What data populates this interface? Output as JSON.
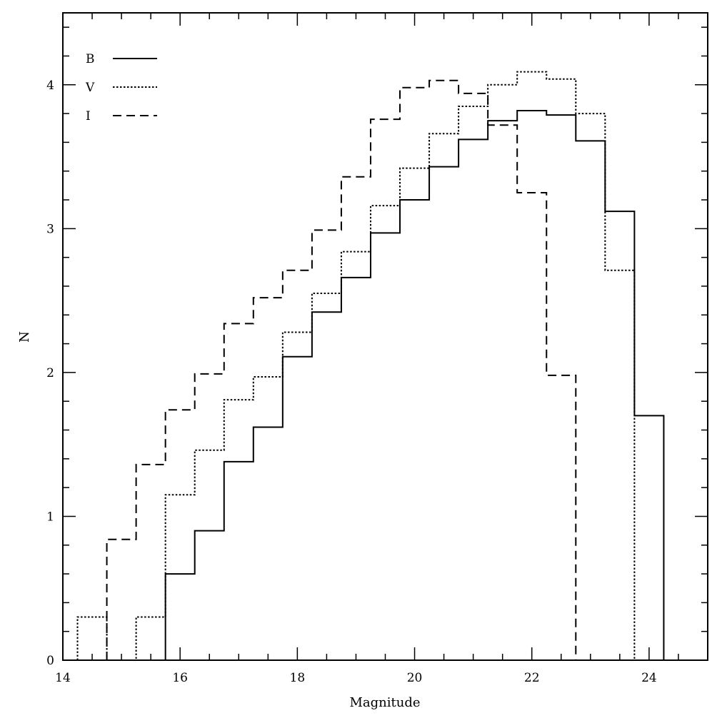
{
  "chart_data": {
    "type": "line",
    "subtype": "step-histogram",
    "title": "",
    "xlabel": "Magnitude",
    "ylabel": "N",
    "xlim": [
      14,
      25
    ],
    "ylim": [
      0,
      4.5
    ],
    "x_ticks": [
      14,
      16,
      18,
      20,
      22,
      24
    ],
    "y_ticks": [
      0,
      1,
      2,
      3,
      4
    ],
    "grid": false,
    "legend_position": "top-left",
    "bin_width": 0.5,
    "series": [
      {
        "name": "B",
        "style": "solid",
        "bin_left_edges": [
          15.75,
          16.25,
          16.75,
          17.25,
          17.75,
          18.25,
          18.75,
          19.25,
          19.75,
          20.25,
          20.75,
          21.25,
          21.75,
          22.25,
          22.75,
          23.25,
          23.75
        ],
        "values": [
          0.6,
          0.9,
          1.38,
          1.62,
          2.11,
          2.42,
          2.66,
          2.97,
          3.2,
          3.43,
          3.62,
          3.75,
          3.82,
          3.79,
          3.61,
          3.12,
          1.7
        ]
      },
      {
        "name": "V",
        "style": "dotted",
        "bin_left_edges": [
          14.25,
          14.75,
          15.25,
          15.75,
          16.25,
          16.75,
          17.25,
          17.75,
          18.25,
          18.75,
          19.25,
          19.75,
          20.25,
          20.75,
          21.25,
          21.75,
          22.25,
          22.75,
          23.25
        ],
        "values": [
          0.3,
          0,
          0.3,
          1.15,
          1.46,
          1.81,
          1.97,
          2.28,
          2.55,
          2.84,
          3.16,
          3.42,
          3.66,
          3.85,
          4.0,
          4.09,
          4.04,
          3.8,
          2.71
        ]
      },
      {
        "name": "I",
        "style": "dashed",
        "bin_left_edges": [
          14.75,
          15.25,
          15.75,
          16.25,
          16.75,
          17.25,
          17.75,
          18.25,
          18.75,
          19.25,
          19.75,
          20.25,
          20.75,
          21.25,
          21.75,
          22.25
        ],
        "values": [
          0.84,
          1.36,
          1.74,
          1.99,
          2.34,
          2.52,
          2.71,
          2.99,
          3.36,
          3.76,
          3.98,
          4.03,
          3.94,
          3.72,
          3.25,
          1.98
        ]
      }
    ]
  }
}
